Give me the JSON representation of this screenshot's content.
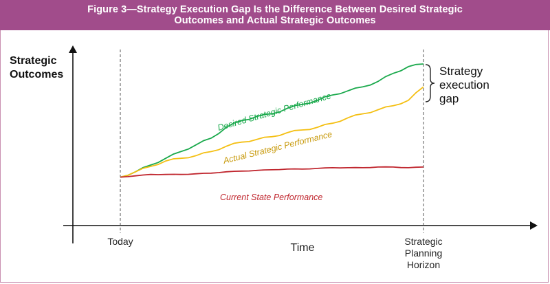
{
  "figure": {
    "title_line1": "Figure 3—Strategy Execution Gap Is the Difference Between Desired Strategic",
    "title_line2": "Outcomes and Actual Strategic Outcomes"
  },
  "chart_data": {
    "type": "line",
    "title": "Figure 3—Strategy Execution Gap Is the Difference Between Desired Strategic Outcomes and Actual Strategic Outcomes",
    "ylabel_line1": "Strategic",
    "ylabel_line2": "Outcomes",
    "xlabel": "Time",
    "x_ticks": {
      "today": "Today",
      "horizon_line1": "Strategic",
      "horizon_line2": "Planning",
      "horizon_line3": "Horizon"
    },
    "annotation": {
      "line1": "Strategy",
      "line2": "execution",
      "line3": "gap"
    },
    "xlim": [
      0,
      100
    ],
    "ylim": [
      0,
      100
    ],
    "series": [
      {
        "name": "Desired Strategic Performance",
        "color": "#1aa94c",
        "x": [
          0,
          5,
          10,
          15,
          20,
          25,
          30,
          35,
          40,
          45,
          50,
          55,
          60,
          65,
          70,
          75,
          80,
          85,
          90,
          95,
          100
        ],
        "y": [
          16,
          20,
          25,
          30,
          35,
          40,
          45,
          53,
          58,
          61,
          63,
          67,
          70,
          73,
          77,
          80,
          83,
          87,
          93,
          98,
          100
        ]
      },
      {
        "name": "Actual Strategic Performance",
        "color": "#f4bf12",
        "x": [
          0,
          5,
          10,
          15,
          20,
          25,
          30,
          35,
          40,
          45,
          50,
          55,
          60,
          65,
          70,
          75,
          80,
          85,
          90,
          95,
          100
        ],
        "y": [
          16,
          20,
          24,
          28,
          30,
          32,
          35,
          39,
          42,
          44,
          46,
          49,
          51,
          53,
          56,
          60,
          63,
          66,
          69,
          73,
          83
        ]
      },
      {
        "name": "Current State Performance",
        "color": "#c0262e",
        "x": [
          0,
          5,
          10,
          15,
          20,
          25,
          30,
          35,
          40,
          45,
          50,
          55,
          60,
          65,
          70,
          75,
          80,
          85,
          90,
          95,
          100
        ],
        "y": [
          16,
          17,
          18,
          18,
          18,
          18.5,
          19,
          20,
          20.5,
          21,
          21.5,
          22,
          22,
          22.5,
          23,
          23,
          23,
          23.5,
          23.5,
          23,
          23.5
        ]
      }
    ]
  }
}
